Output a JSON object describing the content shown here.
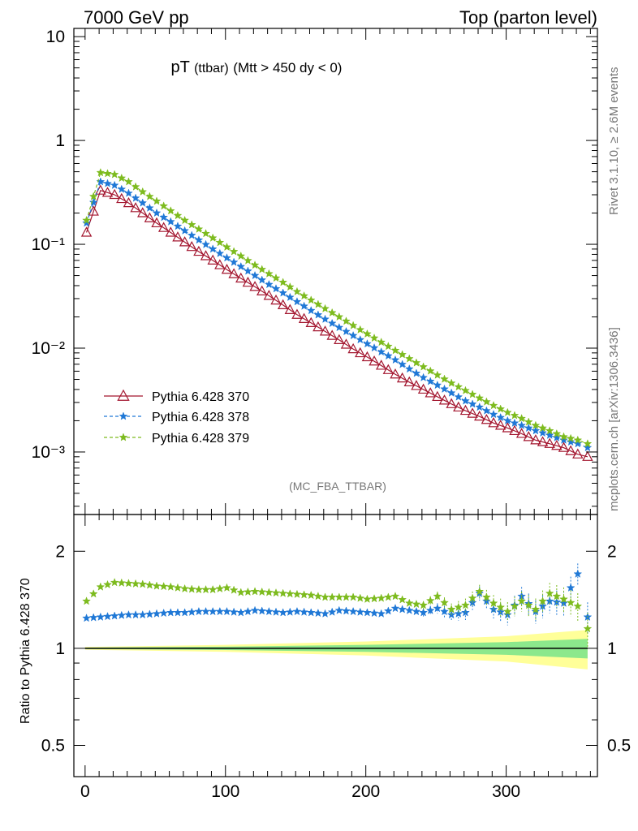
{
  "header": {
    "energy_label": "7000 GeV pp",
    "process_label": "Top (parton level)"
  },
  "title": {
    "main": "pT",
    "sub": "(ttbar)",
    "cut": "(Mtt > 450 dy < 0)"
  },
  "side_labels": {
    "rivet": "Rivet 3.1.10, ≥ 2.6M events",
    "mcplots": "mcplots.cern.ch [arXiv:1306.3436]"
  },
  "analysis_label": "(MC_FBA_TTBAR)",
  "ratio_ylabel": "Ratio to Pythia 6.428 370",
  "colors": {
    "s370": "#a3162f",
    "s378": "#1f78d6",
    "s379": "#7dbb1e",
    "band_inner": "#8ce88c",
    "band_outer": "#ffff99"
  },
  "chart_data": [
    {
      "type": "line",
      "panel": "main",
      "yscale": "log",
      "xlim": [
        -8,
        365
      ],
      "ylim": [
        0.00025,
        12
      ],
      "yticks": [
        {
          "value": 10,
          "label": "10"
        },
        {
          "value": 1,
          "label": "1"
        },
        {
          "value": 0.1,
          "label": "10⁻¹"
        },
        {
          "value": 0.01,
          "label": "10⁻²"
        },
        {
          "value": 0.001,
          "label": "10⁻³"
        }
      ],
      "x": [
        1,
        11,
        21,
        31,
        41,
        51,
        61,
        71,
        81,
        91,
        101,
        111,
        121,
        131,
        141,
        151,
        161,
        171,
        181,
        191,
        201,
        211,
        221,
        231,
        241,
        251,
        261,
        271,
        281,
        291,
        301,
        311,
        321,
        331,
        341,
        351,
        358
      ],
      "series": [
        {
          "name": "Pythia 6.428 370",
          "style": "solid",
          "marker": "triangle",
          "values": [
            0.13,
            0.33,
            0.3,
            0.25,
            0.2,
            0.16,
            0.13,
            0.105,
            0.085,
            0.07,
            0.057,
            0.047,
            0.039,
            0.032,
            0.026,
            0.021,
            0.0175,
            0.0145,
            0.012,
            0.0098,
            0.0082,
            0.0068,
            0.0056,
            0.0047,
            0.004,
            0.0034,
            0.0029,
            0.0025,
            0.0022,
            0.0019,
            0.0017,
            0.0015,
            0.0013,
            0.0012,
            0.0011,
            0.00095,
            0.0009
          ]
        },
        {
          "name": "Pythia 6.428 378",
          "style": "dashed",
          "marker": "star",
          "values": [
            0.16,
            0.4,
            0.37,
            0.31,
            0.25,
            0.2,
            0.165,
            0.135,
            0.11,
            0.09,
            0.074,
            0.061,
            0.05,
            0.041,
            0.034,
            0.028,
            0.023,
            0.019,
            0.0158,
            0.0132,
            0.011,
            0.0092,
            0.0077,
            0.0063,
            0.0052,
            0.0044,
            0.0037,
            0.0031,
            0.0027,
            0.0023,
            0.002,
            0.0018,
            0.0016,
            0.00145,
            0.0013,
            0.0012,
            0.0011
          ]
        },
        {
          "name": "Pythia 6.428 379",
          "style": "dashed",
          "marker": "star",
          "values": [
            0.17,
            0.49,
            0.47,
            0.4,
            0.32,
            0.26,
            0.21,
            0.17,
            0.14,
            0.115,
            0.094,
            0.077,
            0.063,
            0.052,
            0.043,
            0.035,
            0.029,
            0.024,
            0.02,
            0.0165,
            0.0137,
            0.0114,
            0.0095,
            0.0079,
            0.0066,
            0.0055,
            0.0046,
            0.0039,
            0.0033,
            0.0028,
            0.0024,
            0.0021,
            0.0018,
            0.0016,
            0.0014,
            0.0013,
            0.0012
          ]
        }
      ]
    },
    {
      "type": "line",
      "panel": "ratio",
      "yscale": "log",
      "xlim": [
        -8,
        365
      ],
      "ylim": [
        0.4,
        2.6
      ],
      "xticks": [
        0,
        100,
        200,
        300
      ],
      "yticks": [
        {
          "value": 2,
          "label": "2"
        },
        {
          "value": 1,
          "label": "1"
        },
        {
          "value": 0.5,
          "label": "0.5"
        }
      ],
      "x": [
        1,
        11,
        21,
        31,
        41,
        51,
        61,
        71,
        81,
        91,
        101,
        111,
        121,
        131,
        141,
        151,
        161,
        171,
        181,
        191,
        201,
        211,
        221,
        231,
        241,
        251,
        261,
        271,
        281,
        291,
        301,
        311,
        321,
        331,
        341,
        351,
        358
      ],
      "series": [
        {
          "name": "Pythia 6.428 378",
          "values": [
            1.24,
            1.25,
            1.26,
            1.27,
            1.27,
            1.28,
            1.29,
            1.29,
            1.3,
            1.3,
            1.3,
            1.29,
            1.31,
            1.3,
            1.29,
            1.3,
            1.29,
            1.28,
            1.31,
            1.3,
            1.29,
            1.28,
            1.33,
            1.31,
            1.29,
            1.33,
            1.27,
            1.29,
            1.48,
            1.32,
            1.27,
            1.45,
            1.3,
            1.4,
            1.38,
            1.7,
            1.25
          ]
        },
        {
          "name": "Pythia 6.428 379",
          "values": [
            1.4,
            1.55,
            1.6,
            1.59,
            1.58,
            1.56,
            1.55,
            1.53,
            1.52,
            1.52,
            1.54,
            1.49,
            1.5,
            1.49,
            1.48,
            1.47,
            1.46,
            1.44,
            1.44,
            1.44,
            1.42,
            1.43,
            1.45,
            1.38,
            1.36,
            1.45,
            1.32,
            1.36,
            1.5,
            1.38,
            1.3,
            1.4,
            1.32,
            1.48,
            1.42,
            1.35,
            1.15
          ]
        }
      ],
      "band": {
        "x": [
          0,
          100,
          200,
          300,
          358
        ],
        "inner_half_width": [
          0.005,
          0.012,
          0.025,
          0.045,
          0.07
        ],
        "outer_half_width": [
          0.01,
          0.025,
          0.05,
          0.09,
          0.14
        ]
      }
    }
  ]
}
